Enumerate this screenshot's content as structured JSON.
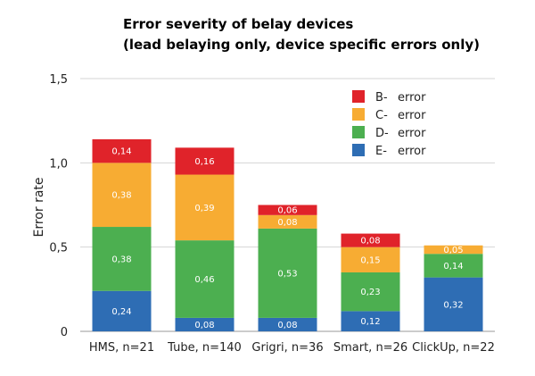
{
  "chart_data": {
    "type": "bar",
    "stacked": true,
    "title": "Error severity of belay devices",
    "subtitle": "(lead belaying only, device specific errors only)",
    "ylabel": "Error rate",
    "xlabel": "",
    "ylim": [
      0,
      1.5
    ],
    "yticks": [
      "0",
      "0,5",
      "1,0",
      "1,5"
    ],
    "ytick_values": [
      0,
      0.5,
      1.0,
      1.5
    ],
    "grid": true,
    "legend_position": "top-right",
    "categories": [
      "HMS, n=21",
      "Tube, n=140",
      "Grigri, n=36",
      "Smart, n=26",
      "ClickUp, n=22"
    ],
    "series": [
      {
        "name": "E-Error",
        "legend_prefix": "E-",
        "legend_suffix": "error",
        "color": "#2e6db4",
        "values": [
          0.24,
          0.08,
          0.08,
          0.12,
          0.32
        ],
        "labels": [
          "0,24",
          "0,08",
          "0,08",
          "0,12",
          "0,32"
        ]
      },
      {
        "name": "D-Error",
        "legend_prefix": "D-",
        "legend_suffix": "error",
        "color": "#4caf50",
        "values": [
          0.38,
          0.46,
          0.53,
          0.23,
          0.14
        ],
        "labels": [
          "0,38",
          "0,46",
          "0,53",
          "0,23",
          "0,14"
        ]
      },
      {
        "name": "C-Error",
        "legend_prefix": "C-",
        "legend_suffix": "error",
        "color": "#f7ac33",
        "values": [
          0.38,
          0.39,
          0.08,
          0.15,
          0.05
        ],
        "labels": [
          "0,38",
          "0,39",
          "0,08",
          "0,15",
          "0,05"
        ]
      },
      {
        "name": "B-Error",
        "legend_prefix": "B-",
        "legend_suffix": "error",
        "color": "#e0232a",
        "values": [
          0.14,
          0.16,
          0.06,
          0.08,
          0
        ],
        "labels": [
          "0,14",
          "0,16",
          "0,06",
          "0,08",
          ""
        ]
      }
    ],
    "legend_order": [
      "B-Error",
      "C-Error",
      "D-Error",
      "E-Error"
    ]
  }
}
